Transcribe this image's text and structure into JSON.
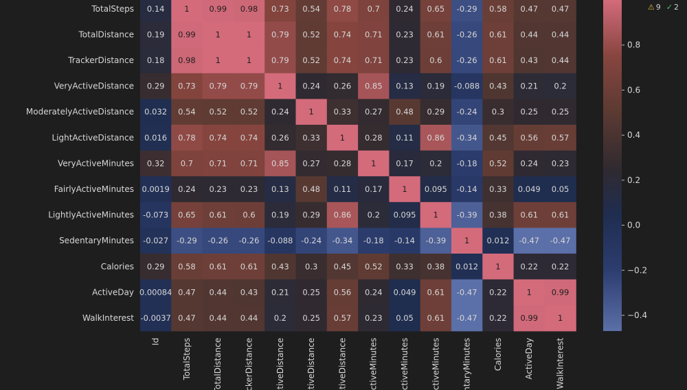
{
  "status": {
    "warnings": "9",
    "checks": "2",
    "warning_icon": "warning-triangle-icon",
    "check_icon": "double-check-icon"
  },
  "chart_data": {
    "type": "heatmap",
    "row_labels": [
      "TotalSteps",
      "TotalDistance",
      "TrackerDistance",
      "VeryActiveDistance",
      "ModeratelyActiveDistance",
      "LightActiveDistance",
      "VeryActiveMinutes",
      "FairlyActiveMinutes",
      "LightlyActiveMinutes",
      "SedentaryMinutes",
      "Calories",
      "ActiveDay",
      "WalkInterest"
    ],
    "col_labels": [
      "Id",
      "TotalSteps",
      "TotalDistance",
      "TrackerDistance",
      "VeryActiveDistance",
      "ModeratelyActiveDistance",
      "LightActiveDistance",
      "VeryActiveMinutes",
      "FairlyActiveMinutes",
      "LightlyActiveMinutes",
      "SedentaryMinutes",
      "Calories",
      "ActiveDay",
      "WalkInterest"
    ],
    "col_labels_visible": [
      "Id",
      "TotalSteps",
      "TotalDistance",
      "rackerDistance",
      "ActiveDistance",
      "ActiveDistance",
      "ActiveDistance",
      "ActiveMinutes",
      "ActiveMinutes",
      "ActiveMinutes",
      "entaryMinutes",
      "Calories",
      "ActiveDay",
      "WalkInterest"
    ],
    "values": [
      [
        0.14,
        1,
        0.99,
        0.98,
        0.73,
        0.54,
        0.78,
        0.7,
        0.24,
        0.65,
        -0.29,
        0.58,
        0.47,
        0.47
      ],
      [
        0.19,
        0.99,
        1,
        1,
        0.79,
        0.52,
        0.74,
        0.71,
        0.23,
        0.61,
        -0.26,
        0.61,
        0.44,
        0.44
      ],
      [
        0.18,
        0.98,
        1,
        1,
        0.79,
        0.52,
        0.74,
        0.71,
        0.23,
        0.6,
        -0.26,
        0.61,
        0.43,
        0.44
      ],
      [
        0.29,
        0.73,
        0.79,
        0.79,
        1,
        0.24,
        0.26,
        0.85,
        0.13,
        0.19,
        -0.088,
        0.43,
        0.21,
        0.2
      ],
      [
        0.032,
        0.54,
        0.52,
        0.52,
        0.24,
        1,
        0.33,
        0.27,
        0.48,
        0.29,
        -0.24,
        0.3,
        0.25,
        0.25
      ],
      [
        0.016,
        0.78,
        0.74,
        0.74,
        0.26,
        0.33,
        1,
        0.28,
        0.11,
        0.86,
        -0.34,
        0.45,
        0.56,
        0.57
      ],
      [
        0.32,
        0.7,
        0.71,
        0.71,
        0.85,
        0.27,
        0.28,
        1,
        0.17,
        0.2,
        -0.18,
        0.52,
        0.24,
        0.23
      ],
      [
        0.0019,
        0.24,
        0.23,
        0.23,
        0.13,
        0.48,
        0.11,
        0.17,
        1,
        0.095,
        -0.14,
        0.33,
        0.049,
        0.05
      ],
      [
        -0.073,
        0.65,
        0.61,
        0.6,
        0.19,
        0.29,
        0.86,
        0.2,
        0.095,
        1,
        -0.39,
        0.38,
        0.61,
        0.61
      ],
      [
        -0.027,
        -0.29,
        -0.26,
        -0.26,
        -0.088,
        -0.24,
        -0.34,
        -0.18,
        -0.14,
        -0.39,
        1,
        0.012,
        -0.47,
        -0.47
      ],
      [
        0.29,
        0.58,
        0.61,
        0.61,
        0.43,
        0.3,
        0.45,
        0.52,
        0.33,
        0.38,
        0.012,
        1,
        0.22,
        0.22
      ],
      [
        0.00084,
        0.47,
        0.44,
        0.43,
        0.21,
        0.25,
        0.56,
        0.24,
        0.049,
        0.61,
        -0.47,
        0.22,
        1,
        0.99
      ],
      [
        -0.0037,
        0.47,
        0.44,
        0.44,
        0.2,
        0.25,
        0.57,
        0.23,
        0.05,
        0.61,
        -0.47,
        0.22,
        0.99,
        1
      ]
    ],
    "value_labels": [
      [
        "0.14",
        "1",
        "0.99",
        "0.98",
        "0.73",
        "0.54",
        "0.78",
        "0.7",
        "0.24",
        "0.65",
        "-0.29",
        "0.58",
        "0.47",
        "0.47"
      ],
      [
        "0.19",
        "0.99",
        "1",
        "1",
        "0.79",
        "0.52",
        "0.74",
        "0.71",
        "0.23",
        "0.61",
        "-0.26",
        "0.61",
        "0.44",
        "0.44"
      ],
      [
        "0.18",
        "0.98",
        "1",
        "1",
        "0.79",
        "0.52",
        "0.74",
        "0.71",
        "0.23",
        "0.6",
        "-0.26",
        "0.61",
        "0.43",
        "0.44"
      ],
      [
        "0.29",
        "0.73",
        "0.79",
        "0.79",
        "1",
        "0.24",
        "0.26",
        "0.85",
        "0.13",
        "0.19",
        "-0.088",
        "0.43",
        "0.21",
        "0.2"
      ],
      [
        "0.032",
        "0.54",
        "0.52",
        "0.52",
        "0.24",
        "1",
        "0.33",
        "0.27",
        "0.48",
        "0.29",
        "-0.24",
        "0.3",
        "0.25",
        "0.25"
      ],
      [
        "0.016",
        "0.78",
        "0.74",
        "0.74",
        "0.26",
        "0.33",
        "1",
        "0.28",
        "0.11",
        "0.86",
        "-0.34",
        "0.45",
        "0.56",
        "0.57"
      ],
      [
        "0.32",
        "0.7",
        "0.71",
        "0.71",
        "0.85",
        "0.27",
        "0.28",
        "1",
        "0.17",
        "0.2",
        "-0.18",
        "0.52",
        "0.24",
        "0.23"
      ],
      [
        "0.0019",
        "0.24",
        "0.23",
        "0.23",
        "0.13",
        "0.48",
        "0.11",
        "0.17",
        "1",
        "0.095",
        "-0.14",
        "0.33",
        "0.049",
        "0.05"
      ],
      [
        "-0.073",
        "0.65",
        "0.61",
        "0.6",
        "0.19",
        "0.29",
        "0.86",
        "0.2",
        "0.095",
        "1",
        "-0.39",
        "0.38",
        "0.61",
        "0.61"
      ],
      [
        "-0.027",
        "-0.29",
        "-0.26",
        "-0.26",
        "-0.088",
        "-0.24",
        "-0.34",
        "-0.18",
        "-0.14",
        "-0.39",
        "1",
        "0.012",
        "-0.47",
        "-0.47"
      ],
      [
        "0.29",
        "0.58",
        "0.61",
        "0.61",
        "0.43",
        "0.3",
        "0.45",
        "0.52",
        "0.33",
        "0.38",
        "0.012",
        "1",
        "0.22",
        "0.22"
      ],
      [
        "0.00084",
        "0.47",
        "0.44",
        "0.43",
        "0.21",
        "0.25",
        "0.56",
        "0.24",
        "0.049",
        "0.61",
        "-0.47",
        "0.22",
        "1",
        "0.99"
      ],
      [
        "-0.0037",
        "0.47",
        "0.44",
        "0.44",
        "0.2",
        "0.25",
        "0.57",
        "0.23",
        "0.05",
        "0.61",
        "-0.47",
        "0.22",
        "0.99",
        "1"
      ]
    ],
    "colorbar": {
      "ticks": [
        0.8,
        0.6,
        0.4,
        0.2,
        0.0,
        -0.2,
        -0.4
      ],
      "tick_labels": [
        "0.8",
        "0.6",
        "0.4",
        "0.2",
        "0.0",
        "−0.2",
        "−0.4"
      ],
      "range": [
        -0.47,
        1.0
      ]
    },
    "colormap": {
      "stops": [
        {
          "value": -0.47,
          "color": "#5b6fa8"
        },
        {
          "value": -0.2,
          "color": "#2c3d6f"
        },
        {
          "value": 0.05,
          "color": "#1f2d4f"
        },
        {
          "value": 0.25,
          "color": "#302a30"
        },
        {
          "value": 0.5,
          "color": "#5b3a32"
        },
        {
          "value": 0.75,
          "color": "#87453f"
        },
        {
          "value": 1.0,
          "color": "#d36b7b"
        }
      ]
    },
    "background": "#1e1e1f",
    "text_color": "#d7d7d7"
  }
}
